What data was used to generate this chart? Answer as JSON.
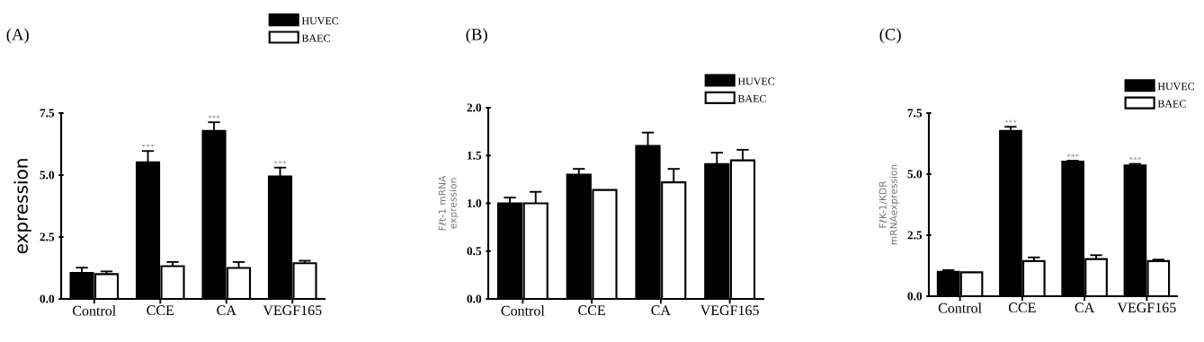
{
  "chart_data": [
    {
      "type": "bar",
      "title": "(A)",
      "ylabel": "expression",
      "categories": [
        "Control",
        "CCE",
        "CA",
        "VEGF165"
      ],
      "series": [
        {
          "name": "HUVEC",
          "color": "#000000",
          "values": [
            1.05,
            5.51,
            6.78,
            4.94
          ],
          "errors": [
            [
              1.05,
              1.26
            ],
            [
              5.51,
              5.97
            ],
            [
              6.78,
              7.13
            ],
            [
              4.94,
              5.3
            ]
          ]
        },
        {
          "name": "BAEC",
          "color": "#ffffff",
          "values": [
            1.0,
            1.32,
            1.25,
            1.44
          ],
          "errors": [
            [
              1.0,
              1.11
            ],
            [
              1.32,
              1.49
            ],
            [
              1.25,
              1.49
            ],
            [
              1.44,
              1.54
            ]
          ]
        }
      ],
      "ylim": [
        0,
        7.5
      ],
      "yticks": [
        {
          "value": 0,
          "label": "0.0"
        },
        {
          "value": 2.5,
          "label": "2.5"
        },
        {
          "value": 5,
          "label": "5.0"
        },
        {
          "value": 7.5,
          "label": "7.5"
        }
      ],
      "legend": "top right",
      "annotations": [
        {
          "text": "***",
          "x": "CCE",
          "y": 5.51
        },
        {
          "text": "***",
          "x": "CA",
          "y": 6.78
        },
        {
          "text": "***",
          "x": "VEGF165",
          "y": 4.94
        }
      ]
    },
    {
      "type": "bar",
      "title": "(B)",
      "ylabel": "Fℓt-1 mRNA\nexpression",
      "categories": [
        "Control",
        "CCE",
        "CA",
        "VEGF165"
      ],
      "series": [
        {
          "name": "HUVEC",
          "color": "#000000",
          "values": [
            1.0,
            1.3,
            1.6,
            1.41
          ],
          "errors": [
            [
              1.0,
              1.06
            ],
            [
              1.3,
              1.36
            ],
            [
              1.6,
              1.74
            ],
            [
              1.41,
              1.53
            ]
          ]
        },
        {
          "name": "BAEC",
          "color": "#ffffff",
          "values": [
            1.0,
            1.14,
            1.22,
            1.45
          ],
          "errors": [
            [
              1.0,
              1.12
            ],
            null,
            [
              1.22,
              1.36
            ],
            [
              1.45,
              1.56
            ]
          ]
        }
      ],
      "ylim": [
        0,
        2.0
      ],
      "yticks": [
        {
          "value": 0,
          "label": "0.0"
        },
        {
          "value": 0.5,
          "label": "0.5"
        },
        {
          "value": 1,
          "label": "1.0"
        },
        {
          "value": 1.5,
          "label": "1.5"
        },
        {
          "value": 2,
          "label": "2.0"
        }
      ],
      "legend": "top right"
    },
    {
      "type": "bar",
      "title": "(C)",
      "ylabel": "FℓK-1/KDR\nmRNAexpression",
      "categories": [
        "Control",
        "CCE",
        "CA",
        "VEGF165"
      ],
      "series": [
        {
          "name": "HUVEC",
          "color": "#000000",
          "values": [
            1.0,
            6.77,
            5.51,
            5.36
          ],
          "errors": [
            [
              1.0,
              1.07
            ],
            [
              6.77,
              6.94
            ],
            [
              5.51,
              5.55
            ],
            [
              5.36,
              5.42
            ]
          ]
        },
        {
          "name": "BAEC",
          "color": "#ffffff",
          "values": [
            0.98,
            1.44,
            1.52,
            1.44
          ],
          "errors": [
            null,
            [
              1.44,
              1.59
            ],
            [
              1.52,
              1.68
            ],
            [
              1.44,
              1.5
            ]
          ]
        }
      ],
      "ylim": [
        0,
        7.5
      ],
      "yticks": [
        {
          "value": 0,
          "label": "0.0"
        },
        {
          "value": 2.5,
          "label": "2.5"
        },
        {
          "value": 5,
          "label": "5.0"
        },
        {
          "value": 7.5,
          "label": "7.5"
        }
      ],
      "legend": "top right",
      "annotations": [
        {
          "text": "***",
          "x": "CCE",
          "y": 6.77
        },
        {
          "text": "***",
          "x": "CA",
          "y": 5.51
        },
        {
          "text": "***",
          "x": "VEGF165",
          "y": 5.36
        }
      ]
    }
  ]
}
